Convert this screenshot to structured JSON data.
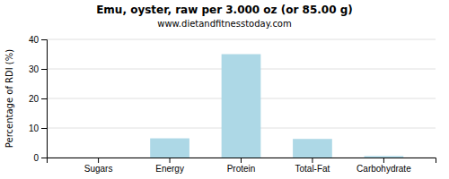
{
  "chart_data": {
    "type": "bar",
    "title": "Emu, oyster, raw per 3.000 oz (or 85.00 g)",
    "subtitle": "www.dietandfitnesstoday.com",
    "categories": [
      "Sugars",
      "Energy",
      "Protein",
      "Total-Fat",
      "Carbohydrate"
    ],
    "values": [
      0,
      6.5,
      35,
      6.3,
      0.5
    ],
    "color": "#add8e6",
    "ylabel": "Percentage of RDI (%)",
    "ylim": [
      0,
      40
    ],
    "yticks": [
      0,
      10,
      20,
      30,
      40
    ],
    "grid": true
  }
}
